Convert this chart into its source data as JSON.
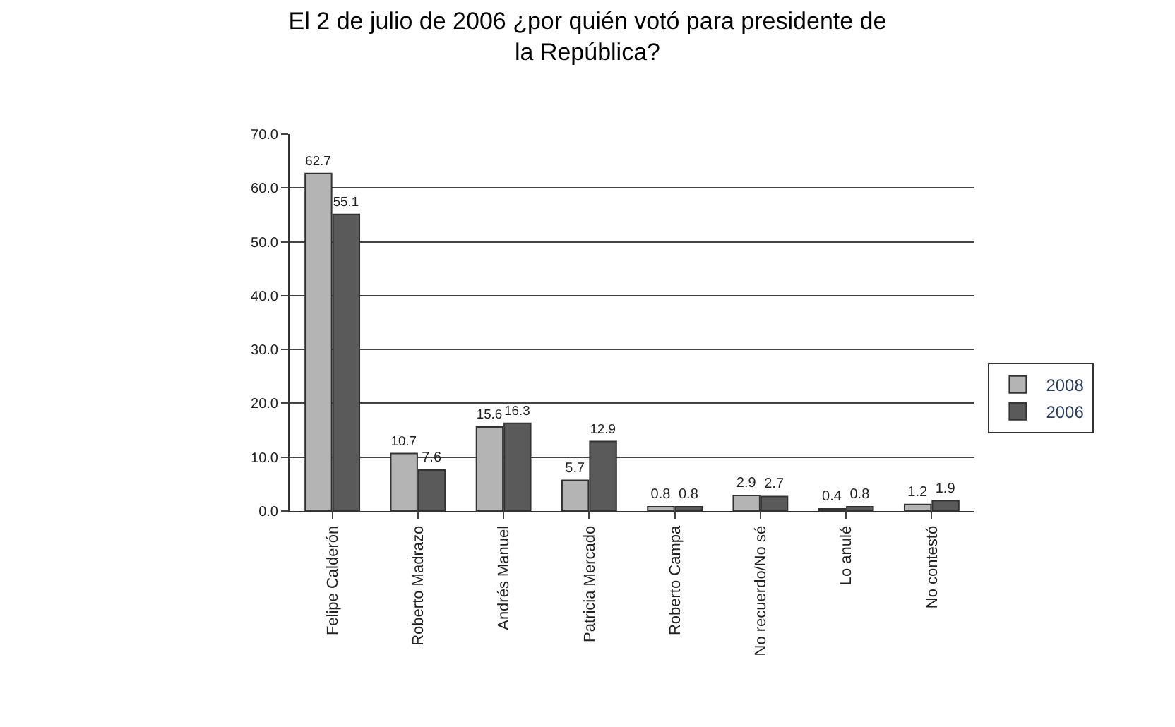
{
  "chart_data": {
    "type": "bar",
    "title": "El 2 de julio de 2006 ¿por quién votó para presidente de la República?",
    "categories": [
      "Felipe Calderón",
      "Roberto Madrazo",
      "Andrés Manuel",
      "Patricia Mercado",
      "Roberto Campa",
      "No recuerdo/No sé",
      "Lo anulé",
      "No contestó"
    ],
    "series": [
      {
        "name": "2008",
        "color": "#b4b4b4",
        "values": [
          62.7,
          10.7,
          15.6,
          5.7,
          0.8,
          2.9,
          0.4,
          1.2
        ]
      },
      {
        "name": "2006",
        "color": "#5a5a5a",
        "values": [
          55.1,
          7.6,
          16.3,
          12.9,
          0.8,
          2.7,
          0.8,
          1.9
        ]
      }
    ],
    "ylim": [
      0,
      70
    ],
    "yticks": [
      {
        "value": 0,
        "label": "0.0"
      },
      {
        "value": 10,
        "label": "10.0"
      },
      {
        "value": 20,
        "label": "20.0"
      },
      {
        "value": 30,
        "label": "30.0"
      },
      {
        "value": 40,
        "label": "40.0"
      },
      {
        "value": 50,
        "label": "50.0"
      },
      {
        "value": 60,
        "label": "60.0"
      },
      {
        "value": 70,
        "label": "70.0"
      }
    ],
    "grid": "y",
    "legend": "right",
    "data_labels": true
  }
}
